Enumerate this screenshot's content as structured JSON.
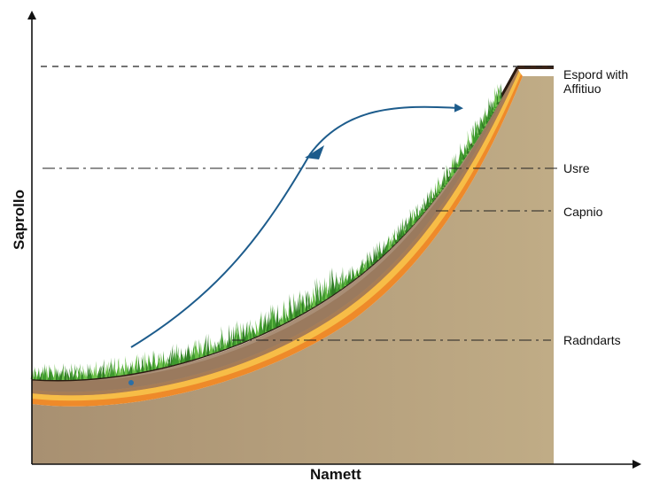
{
  "axes": {
    "x_label": "Namett",
    "y_label": "Saprollo"
  },
  "labels": {
    "line_1": "Espord with\nAffitiuo",
    "line_2": "Usre",
    "line_3": "Capnio",
    "line_4": "Radndarts"
  },
  "colors": {
    "grass": "#3f9a2e",
    "grass_light": "#6cc04a",
    "soil_top": "#2a1a10",
    "soil_brown": "#9a7a5e",
    "orange_band": "#ee8a2a",
    "yellow_band": "#f7c24a",
    "bedrock": "#b4a078",
    "arrow": "#1d5c8c",
    "axis": "#111111"
  }
}
